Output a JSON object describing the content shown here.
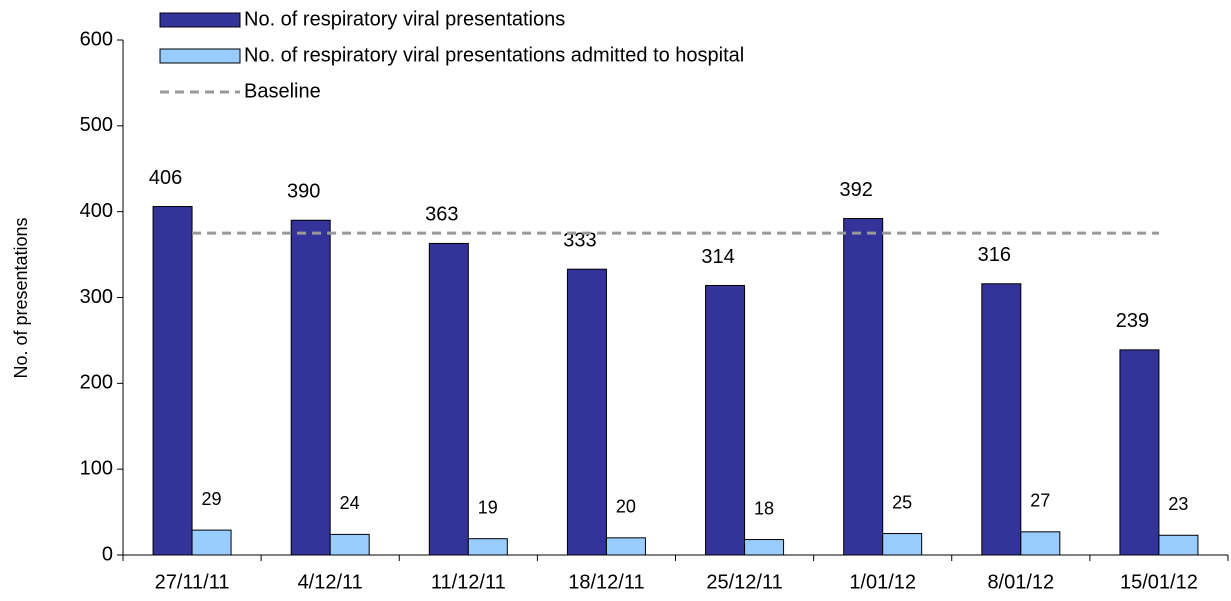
{
  "chart_data": {
    "type": "bar",
    "ylabel": "No. of presentations",
    "categories": [
      "27/11/11",
      "4/12/11",
      "11/12/11",
      "18/12/11",
      "25/12/11",
      "1/01/12",
      "8/01/12",
      "15/01/12"
    ],
    "series": [
      {
        "name": "No. of respiratory viral presentations",
        "color": "#333399",
        "kind": "bar",
        "values": [
          406,
          390,
          363,
          333,
          314,
          392,
          316,
          239
        ]
      },
      {
        "name": "No. of respiratory viral presentations admitted to hospital",
        "color": "#99ccff",
        "kind": "bar",
        "values": [
          29,
          24,
          19,
          20,
          18,
          25,
          27,
          23
        ]
      },
      {
        "name": "Baseline",
        "color": "#999999",
        "kind": "dashed-line",
        "values": [
          375,
          375,
          375,
          375,
          375,
          375,
          375,
          375
        ]
      }
    ],
    "ylim": [
      0,
      600
    ],
    "yticks": [
      0,
      100,
      200,
      300,
      400,
      500,
      600
    ],
    "grid": false,
    "legend": "top-left"
  }
}
